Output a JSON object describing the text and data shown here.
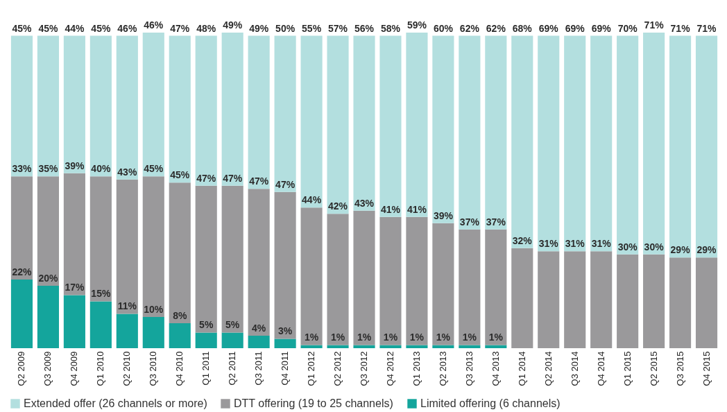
{
  "chart_data": {
    "type": "bar",
    "stacked": true,
    "legend": "bottom",
    "categories": [
      "Q2 2009",
      "Q3 2009",
      "Q4 2009",
      "Q1 2010",
      "Q2 2010",
      "Q3 2010",
      "Q4 2010",
      "Q1 2011",
      "Q2 2011",
      "Q3 2011",
      "Q4 2011",
      "Q1 2012",
      "Q2 2012",
      "Q3 2012",
      "Q4 2012",
      "Q1 2013",
      "Q2 2013",
      "Q3 2013",
      "Q4 2013",
      "Q1 2014",
      "Q2 2014",
      "Q3 2014",
      "Q4 2014",
      "Q1 2015",
      "Q2 2015",
      "Q3 2015",
      "Q4 2015"
    ],
    "series": [
      {
        "name": "Limited offering (6 channels)",
        "color": "#14a59c",
        "values": [
          22,
          20,
          17,
          15,
          11,
          10,
          8,
          5,
          5,
          4,
          3,
          1,
          1,
          1,
          1,
          1,
          1,
          1,
          1,
          null,
          null,
          null,
          null,
          null,
          null,
          null,
          null
        ],
        "value_labels": [
          "22%",
          "20%",
          "17%",
          "15%",
          "11%",
          "10%",
          "8%",
          "5%",
          "5%",
          "4%",
          "3%",
          "1%",
          "1%",
          "1%",
          "1%",
          "1%",
          "1%",
          "1%",
          "1%",
          null,
          null,
          null,
          null,
          null,
          null,
          null,
          null
        ]
      },
      {
        "name": "DTT offering (19 to 25 channels)",
        "color": "#9a999b",
        "values": [
          33,
          35,
          39,
          40,
          43,
          45,
          45,
          47,
          47,
          47,
          47,
          44,
          42,
          43,
          41,
          41,
          39,
          37,
          37,
          32,
          31,
          31,
          31,
          30,
          30,
          29,
          29
        ],
        "value_labels": [
          "33%",
          "35%",
          "39%",
          "40%",
          "43%",
          "45%",
          "45%",
          "47%",
          "47%",
          "47%",
          "47%",
          "44%",
          "42%",
          "43%",
          "41%",
          "41%",
          "39%",
          "37%",
          "37%",
          "32%",
          "31%",
          "31%",
          "31%",
          "30%",
          "30%",
          "29%",
          "29%"
        ]
      },
      {
        "name": "Extended offer (26 channels or more)",
        "color": "#b3dfdf",
        "values": [
          45,
          45,
          44,
          45,
          46,
          46,
          47,
          48,
          49,
          49,
          50,
          55,
          57,
          56,
          58,
          59,
          60,
          62,
          62,
          68,
          69,
          69,
          69,
          70,
          71,
          71,
          71
        ],
        "value_labels": [
          "45%",
          "45%",
          "44%",
          "45%",
          "46%",
          "46%",
          "47%",
          "48%",
          "49%",
          "49%",
          "50%",
          "55%",
          "57%",
          "56%",
          "58%",
          "59%",
          "60%",
          "62%",
          "62%",
          "68%",
          "69%",
          "69%",
          "69%",
          "70%",
          "71%",
          "71%",
          "71%"
        ]
      }
    ]
  }
}
